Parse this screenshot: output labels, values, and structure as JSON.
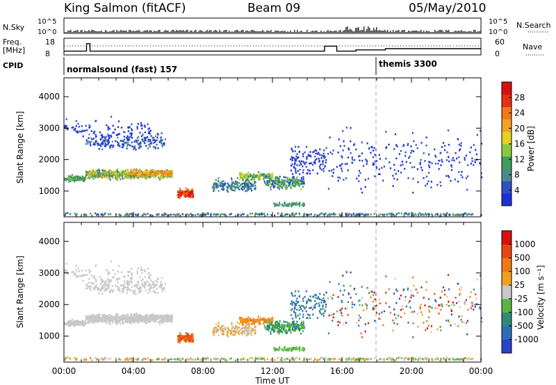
{
  "header": {
    "site": "King Salmon (fitACF)",
    "beam": "Beam 09",
    "date": "05/May/2010"
  },
  "side_labels": {
    "nsky": "N.Sky",
    "freq_a": "Freq.",
    "freq_b": "[MHz]",
    "cpid": "CPID",
    "nsearch": "N.Search",
    "nave": "Nave"
  },
  "cpid": {
    "mode1": "normalsound (fast) 157",
    "mode2": "themis 3300"
  },
  "chart_data": [
    {
      "type": "line",
      "name_left": "N.Sky",
      "name_right": "N.Search",
      "yticks_left": [
        "10^5",
        "10^0"
      ],
      "yticks_right": [
        "10^5",
        "10^0"
      ]
    },
    {
      "type": "line",
      "yticks_left": [
        "18",
        "8"
      ],
      "yticks_right": [
        "60",
        "0"
      ],
      "freq_steps": [
        [
          0,
          11
        ],
        [
          1.3,
          17
        ],
        [
          1.5,
          11
        ],
        [
          15,
          15
        ],
        [
          15.7,
          11
        ],
        [
          16.8,
          12
        ],
        [
          18.2,
          12
        ],
        [
          18.5,
          13
        ],
        [
          24,
          13
        ]
      ]
    },
    {
      "type": "heatmap",
      "xlabel": "",
      "ylabel": "Slant Range [km]",
      "yticks": [
        1000,
        2000,
        3000,
        4000
      ],
      "ylim": [
        180,
        4600
      ],
      "xlim": [
        0,
        24
      ],
      "colorbar_label": "Power [dB]",
      "colorbar_ticks": [
        4,
        8,
        12,
        16,
        20,
        24,
        28
      ],
      "colorbar_colors": [
        "#1f2fd8",
        "#2f50c8",
        "#4a8a8a",
        "#3fa05a",
        "#8cc83c",
        "#e6d020",
        "#f5a020",
        "#f57818",
        "#e63010",
        "#d81010"
      ],
      "mode_change_time": 18.1
    },
    {
      "type": "heatmap",
      "xlabel": "Time UT",
      "ylabel": "Slant Range [km]",
      "yticks": [
        1000,
        2000,
        3000,
        4000
      ],
      "ylim": [
        180,
        4600
      ],
      "xlim": [
        0,
        24
      ],
      "xticks": [
        "00:00",
        "04:00",
        "08:00",
        "12:00",
        "16:00",
        "20:00",
        "00:00"
      ],
      "colorbar_label": "Velocity [m s⁻¹]",
      "colorbar_ticks": [
        "1000",
        "500",
        "100",
        "25",
        "-25",
        "-100",
        "-500",
        "-1000"
      ],
      "colorbar_colors": [
        "#2a44c8",
        "#2f6cb8",
        "#2f8a7a",
        "#5ab440",
        "#c8c8c8",
        "#f0a020",
        "#f07818",
        "#e84810",
        "#d81010"
      ],
      "mode_change_time": 18.1
    }
  ]
}
